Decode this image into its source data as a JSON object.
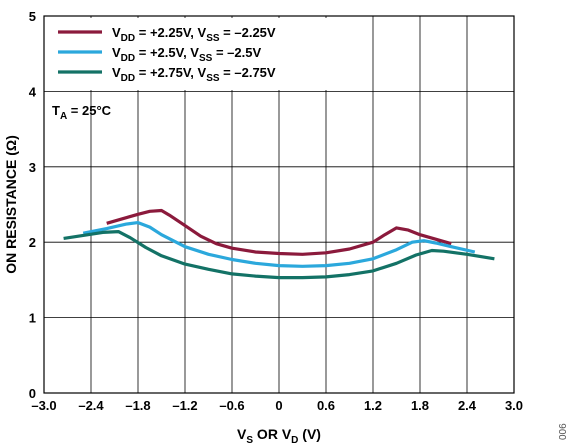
{
  "chart_data": {
    "type": "line",
    "xlabel": {
      "main1": "V",
      "sub1": "S",
      "main2": " OR V",
      "sub2": "D",
      "main3": " (V)"
    },
    "ylabel": "ON RESISTANCE (Ω)",
    "xlim": [
      -3.0,
      3.0
    ],
    "ylim": [
      0,
      5
    ],
    "x_ticks": [
      -3.0,
      -2.4,
      -1.8,
      -1.2,
      -0.6,
      0,
      0.6,
      1.2,
      1.8,
      2.4,
      3.0
    ],
    "x_tick_labels": [
      "–3.0",
      "–2.4",
      "–1.8",
      "–1.2",
      "–0.6",
      "0",
      "0.6",
      "1.2",
      "1.8",
      "2.4",
      "3.0"
    ],
    "y_ticks": [
      0,
      1,
      2,
      3,
      4,
      5
    ],
    "y_tick_labels": [
      "0",
      "1",
      "2",
      "3",
      "4",
      "5"
    ],
    "grid": true,
    "legend_position": "top-left",
    "annotation": {
      "main": "T",
      "sub": "A",
      "rest": " = 25°C"
    },
    "figure_code": "006",
    "series": [
      {
        "legend": {
          "a": "V",
          "a_sub": "DD",
          "b": " = +2.25V, V",
          "b_sub": "SS",
          "c": " = –2.25V"
        },
        "color": "#8b1a3c",
        "points": [
          [
            -2.2,
            2.25
          ],
          [
            -2.0,
            2.31
          ],
          [
            -1.8,
            2.37
          ],
          [
            -1.65,
            2.41
          ],
          [
            -1.5,
            2.42
          ],
          [
            -1.4,
            2.36
          ],
          [
            -1.2,
            2.22
          ],
          [
            -1.0,
            2.08
          ],
          [
            -0.8,
            1.98
          ],
          [
            -0.6,
            1.92
          ],
          [
            -0.3,
            1.87
          ],
          [
            0,
            1.85
          ],
          [
            0.3,
            1.84
          ],
          [
            0.6,
            1.86
          ],
          [
            0.9,
            1.91
          ],
          [
            1.2,
            2.0
          ],
          [
            1.35,
            2.1
          ],
          [
            1.5,
            2.19
          ],
          [
            1.65,
            2.16
          ],
          [
            1.8,
            2.1
          ],
          [
            2.0,
            2.04
          ],
          [
            2.2,
            1.98
          ]
        ]
      },
      {
        "legend": {
          "a": "V",
          "a_sub": "DD",
          "b": " = +2.5V, V",
          "b_sub": "SS",
          "c": " = –2.5V"
        },
        "color": "#2ba8dc",
        "points": [
          [
            -2.5,
            2.12
          ],
          [
            -2.2,
            2.18
          ],
          [
            -1.95,
            2.24
          ],
          [
            -1.8,
            2.26
          ],
          [
            -1.65,
            2.2
          ],
          [
            -1.5,
            2.1
          ],
          [
            -1.2,
            1.94
          ],
          [
            -0.9,
            1.84
          ],
          [
            -0.6,
            1.77
          ],
          [
            -0.3,
            1.72
          ],
          [
            0,
            1.69
          ],
          [
            0.3,
            1.68
          ],
          [
            0.6,
            1.69
          ],
          [
            0.9,
            1.72
          ],
          [
            1.2,
            1.78
          ],
          [
            1.5,
            1.9
          ],
          [
            1.7,
            2.0
          ],
          [
            1.85,
            2.02
          ],
          [
            2.0,
            1.99
          ],
          [
            2.2,
            1.94
          ],
          [
            2.5,
            1.87
          ]
        ]
      },
      {
        "legend": {
          "a": "V",
          "a_sub": "DD",
          "b": " = +2.75V, V",
          "b_sub": "SS",
          "c": " = –2.75V"
        },
        "color": "#137266",
        "points": [
          [
            -2.75,
            2.05
          ],
          [
            -2.5,
            2.09
          ],
          [
            -2.25,
            2.13
          ],
          [
            -2.05,
            2.14
          ],
          [
            -1.9,
            2.06
          ],
          [
            -1.7,
            1.93
          ],
          [
            -1.5,
            1.82
          ],
          [
            -1.2,
            1.71
          ],
          [
            -0.9,
            1.64
          ],
          [
            -0.6,
            1.58
          ],
          [
            -0.3,
            1.55
          ],
          [
            0,
            1.53
          ],
          [
            0.3,
            1.53
          ],
          [
            0.6,
            1.54
          ],
          [
            0.9,
            1.57
          ],
          [
            1.2,
            1.62
          ],
          [
            1.5,
            1.72
          ],
          [
            1.75,
            1.83
          ],
          [
            1.95,
            1.89
          ],
          [
            2.1,
            1.88
          ],
          [
            2.4,
            1.84
          ],
          [
            2.75,
            1.78
          ]
        ]
      }
    ]
  }
}
